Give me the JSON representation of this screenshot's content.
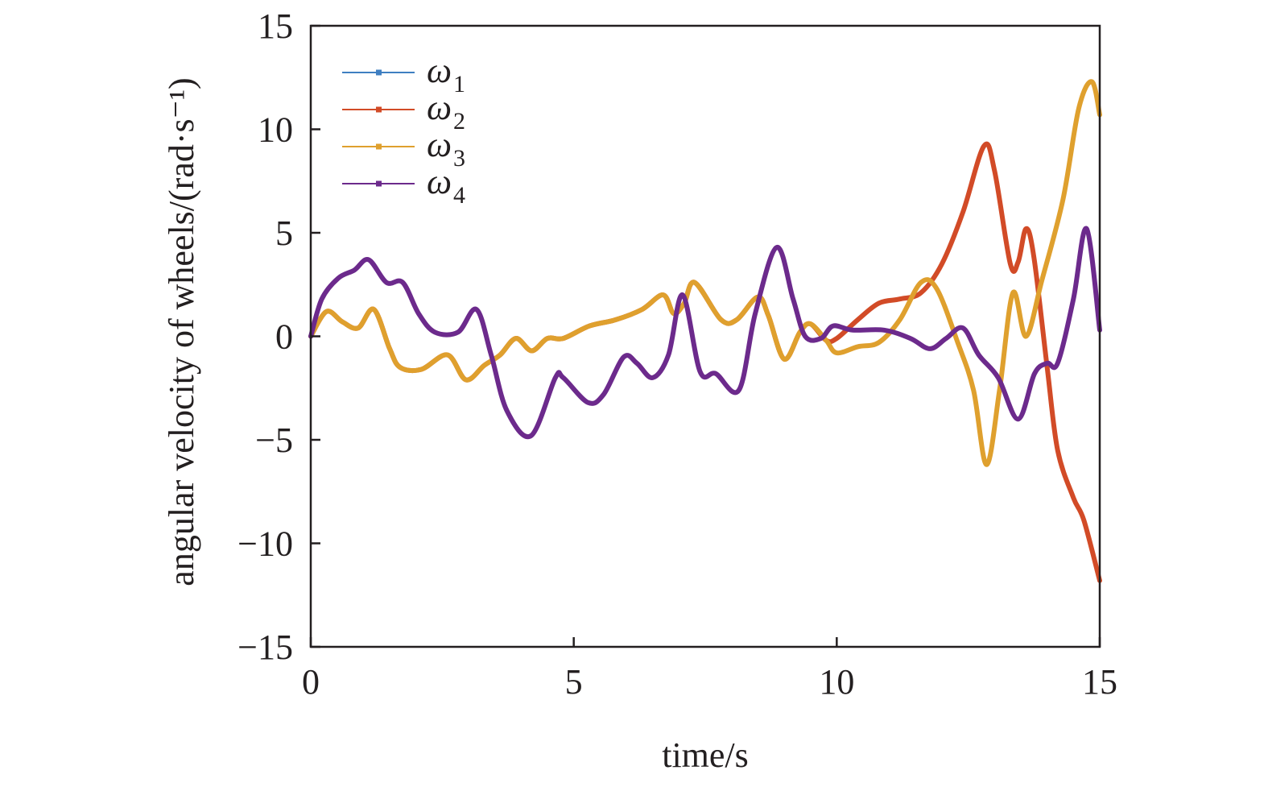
{
  "chart_data": {
    "type": "line",
    "xlabel": "time/s",
    "ylabel": "angular velocity of wheels/(rad·s⁻¹)",
    "xlim": [
      0,
      15
    ],
    "ylim": [
      -15,
      15
    ],
    "xticks": [
      "0",
      "5",
      "10",
      "15"
    ],
    "xtick_values": [
      0,
      5,
      10,
      15
    ],
    "yticks": [
      "15",
      "10",
      "5",
      "0",
      "−5",
      "−10",
      "−15"
    ],
    "ytick_values": [
      15,
      10,
      5,
      0,
      -5,
      -10,
      -15
    ],
    "grid": false,
    "legend_position": "top-left",
    "series": [
      {
        "name": "ω",
        "sub": "1",
        "color": "#3f7fc1",
        "x": [],
        "y": []
      },
      {
        "name": "ω",
        "sub": "2",
        "color": "#d24b27",
        "x": [
          0,
          0.3,
          0.6,
          0.9,
          1.2,
          1.5,
          1.7,
          2.1,
          2.6,
          2.95,
          3.3,
          3.6,
          3.9,
          4.2,
          4.5,
          4.8,
          5.3,
          5.8,
          6.3,
          6.7,
          6.9,
          7.1,
          7.3,
          7.8,
          8.1,
          8.5,
          8.7,
          9.0,
          9.3,
          9.5,
          9.8,
          10.0,
          10.4,
          10.8,
          11.2,
          11.6,
          12.0,
          12.4,
          12.8,
          13.0,
          13.3,
          13.45,
          13.6,
          13.75,
          14.0,
          14.2,
          14.5,
          14.7,
          15
        ],
        "y": [
          0,
          1.2,
          0.7,
          0.4,
          1.3,
          -0.6,
          -1.5,
          -1.6,
          -0.9,
          -2.1,
          -1.4,
          -0.9,
          -0.1,
          -0.7,
          -0.1,
          -0.1,
          0.5,
          0.8,
          1.3,
          2.0,
          1.1,
          1.6,
          2.6,
          0.8,
          0.8,
          1.9,
          1.0,
          -1.1,
          0.2,
          0.6,
          -0.2,
          -0.1,
          0.8,
          1.6,
          1.8,
          2.1,
          3.5,
          6.0,
          9.2,
          8.0,
          3.5,
          3.6,
          5.2,
          3.8,
          -1.5,
          -5.5,
          -7.8,
          -8.9,
          -11.8
        ]
      },
      {
        "name": "ω",
        "sub": "3",
        "color": "#dfa02e",
        "x": [
          0,
          0.3,
          0.6,
          0.9,
          1.2,
          1.5,
          1.7,
          2.1,
          2.6,
          2.95,
          3.3,
          3.6,
          3.9,
          4.2,
          4.5,
          4.8,
          5.3,
          5.8,
          6.3,
          6.7,
          6.9,
          7.1,
          7.3,
          7.8,
          8.1,
          8.5,
          8.7,
          9.0,
          9.3,
          9.5,
          9.8,
          10.0,
          10.4,
          10.8,
          11.2,
          11.6,
          11.9,
          12.3,
          12.6,
          12.85,
          13.1,
          13.35,
          13.6,
          13.9,
          14.3,
          14.6,
          14.85,
          15
        ],
        "y": [
          0,
          1.2,
          0.7,
          0.4,
          1.3,
          -0.6,
          -1.5,
          -1.6,
          -0.9,
          -2.1,
          -1.4,
          -0.9,
          -0.1,
          -0.7,
          -0.1,
          -0.1,
          0.5,
          0.8,
          1.3,
          2.0,
          1.1,
          1.6,
          2.6,
          0.8,
          0.8,
          1.9,
          1.0,
          -1.1,
          0.2,
          0.6,
          -0.2,
          -0.8,
          -0.5,
          -0.3,
          0.8,
          2.6,
          2.3,
          -0.3,
          -2.6,
          -6.2,
          -2.5,
          2.1,
          0.0,
          2.7,
          6.6,
          11.0,
          12.3,
          10.7
        ]
      },
      {
        "name": "ω",
        "sub": "4",
        "color": "#6c2a8c",
        "x": [
          0,
          0.21,
          0.52,
          0.83,
          1.1,
          1.44,
          1.75,
          2.05,
          2.36,
          2.8,
          3.15,
          3.43,
          3.73,
          4.19,
          4.65,
          4.8,
          5.27,
          5.57,
          5.95,
          6.2,
          6.5,
          6.8,
          7.07,
          7.4,
          7.7,
          8.14,
          8.45,
          8.86,
          9.17,
          9.4,
          9.7,
          9.93,
          10.3,
          10.9,
          11.4,
          11.77,
          12.08,
          12.4,
          12.7,
          13.07,
          13.45,
          13.76,
          14.0,
          14.2,
          14.5,
          14.75,
          15
        ],
        "y": [
          0,
          1.8,
          2.8,
          3.2,
          3.7,
          2.6,
          2.6,
          1.1,
          0.2,
          0.2,
          1.3,
          -0.9,
          -3.6,
          -4.8,
          -2.0,
          -2.0,
          -3.2,
          -2.8,
          -1.0,
          -1.3,
          -2.0,
          -0.9,
          2.0,
          -1.7,
          -1.8,
          -2.6,
          1.1,
          4.3,
          1.8,
          0,
          -0.1,
          0.5,
          0.3,
          0.3,
          -0.1,
          -0.6,
          -0.1,
          0.4,
          -0.9,
          -2.0,
          -4.0,
          -1.8,
          -1.3,
          -1.3,
          1.8,
          5.2,
          0.3
        ]
      }
    ]
  }
}
